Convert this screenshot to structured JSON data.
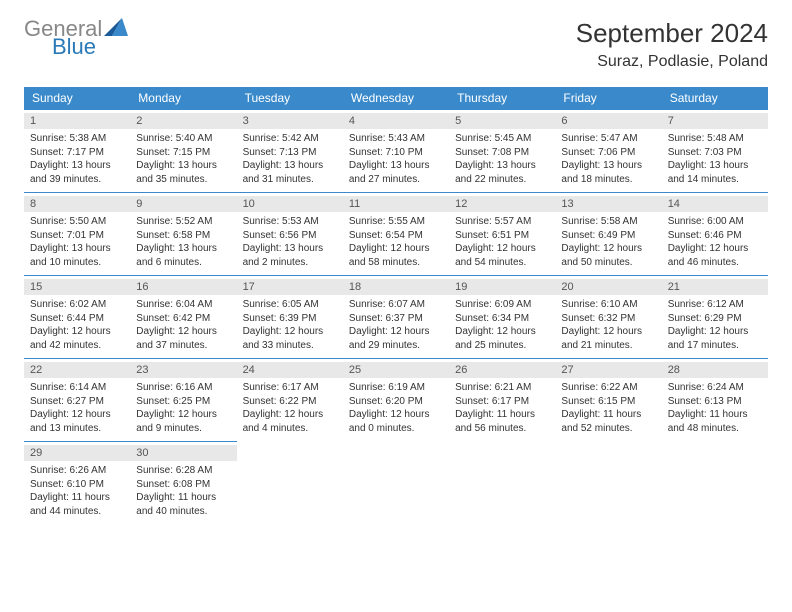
{
  "logo": {
    "word1": "General",
    "word2": "Blue",
    "word1_color": "#888888",
    "word2_color": "#2a7ab8",
    "spike_color": "#1b5a9a"
  },
  "title": "September 2024",
  "location": "Suraz, Podlasie, Poland",
  "colors": {
    "header_bg": "#3a8acb",
    "header_fg": "#ffffff",
    "day_label_bg": "#e8e8e8",
    "border": "#3a8acb",
    "text": "#333333"
  },
  "fonts": {
    "title_size": 26,
    "location_size": 16,
    "header_size": 12,
    "daynum_size": 11,
    "info_size": 10
  },
  "day_headers": [
    "Sunday",
    "Monday",
    "Tuesday",
    "Wednesday",
    "Thursday",
    "Friday",
    "Saturday"
  ],
  "weeks": [
    [
      {
        "n": "1",
        "sr": "5:38 AM",
        "ss": "7:17 PM",
        "dl": "13 hours and 39 minutes."
      },
      {
        "n": "2",
        "sr": "5:40 AM",
        "ss": "7:15 PM",
        "dl": "13 hours and 35 minutes."
      },
      {
        "n": "3",
        "sr": "5:42 AM",
        "ss": "7:13 PM",
        "dl": "13 hours and 31 minutes."
      },
      {
        "n": "4",
        "sr": "5:43 AM",
        "ss": "7:10 PM",
        "dl": "13 hours and 27 minutes."
      },
      {
        "n": "5",
        "sr": "5:45 AM",
        "ss": "7:08 PM",
        "dl": "13 hours and 22 minutes."
      },
      {
        "n": "6",
        "sr": "5:47 AM",
        "ss": "7:06 PM",
        "dl": "13 hours and 18 minutes."
      },
      {
        "n": "7",
        "sr": "5:48 AM",
        "ss": "7:03 PM",
        "dl": "13 hours and 14 minutes."
      }
    ],
    [
      {
        "n": "8",
        "sr": "5:50 AM",
        "ss": "7:01 PM",
        "dl": "13 hours and 10 minutes."
      },
      {
        "n": "9",
        "sr": "5:52 AM",
        "ss": "6:58 PM",
        "dl": "13 hours and 6 minutes."
      },
      {
        "n": "10",
        "sr": "5:53 AM",
        "ss": "6:56 PM",
        "dl": "13 hours and 2 minutes."
      },
      {
        "n": "11",
        "sr": "5:55 AM",
        "ss": "6:54 PM",
        "dl": "12 hours and 58 minutes."
      },
      {
        "n": "12",
        "sr": "5:57 AM",
        "ss": "6:51 PM",
        "dl": "12 hours and 54 minutes."
      },
      {
        "n": "13",
        "sr": "5:58 AM",
        "ss": "6:49 PM",
        "dl": "12 hours and 50 minutes."
      },
      {
        "n": "14",
        "sr": "6:00 AM",
        "ss": "6:46 PM",
        "dl": "12 hours and 46 minutes."
      }
    ],
    [
      {
        "n": "15",
        "sr": "6:02 AM",
        "ss": "6:44 PM",
        "dl": "12 hours and 42 minutes."
      },
      {
        "n": "16",
        "sr": "6:04 AM",
        "ss": "6:42 PM",
        "dl": "12 hours and 37 minutes."
      },
      {
        "n": "17",
        "sr": "6:05 AM",
        "ss": "6:39 PM",
        "dl": "12 hours and 33 minutes."
      },
      {
        "n": "18",
        "sr": "6:07 AM",
        "ss": "6:37 PM",
        "dl": "12 hours and 29 minutes."
      },
      {
        "n": "19",
        "sr": "6:09 AM",
        "ss": "6:34 PM",
        "dl": "12 hours and 25 minutes."
      },
      {
        "n": "20",
        "sr": "6:10 AM",
        "ss": "6:32 PM",
        "dl": "12 hours and 21 minutes."
      },
      {
        "n": "21",
        "sr": "6:12 AM",
        "ss": "6:29 PM",
        "dl": "12 hours and 17 minutes."
      }
    ],
    [
      {
        "n": "22",
        "sr": "6:14 AM",
        "ss": "6:27 PM",
        "dl": "12 hours and 13 minutes."
      },
      {
        "n": "23",
        "sr": "6:16 AM",
        "ss": "6:25 PM",
        "dl": "12 hours and 9 minutes."
      },
      {
        "n": "24",
        "sr": "6:17 AM",
        "ss": "6:22 PM",
        "dl": "12 hours and 4 minutes."
      },
      {
        "n": "25",
        "sr": "6:19 AM",
        "ss": "6:20 PM",
        "dl": "12 hours and 0 minutes."
      },
      {
        "n": "26",
        "sr": "6:21 AM",
        "ss": "6:17 PM",
        "dl": "11 hours and 56 minutes."
      },
      {
        "n": "27",
        "sr": "6:22 AM",
        "ss": "6:15 PM",
        "dl": "11 hours and 52 minutes."
      },
      {
        "n": "28",
        "sr": "6:24 AM",
        "ss": "6:13 PM",
        "dl": "11 hours and 48 minutes."
      }
    ],
    [
      {
        "n": "29",
        "sr": "6:26 AM",
        "ss": "6:10 PM",
        "dl": "11 hours and 44 minutes."
      },
      {
        "n": "30",
        "sr": "6:28 AM",
        "ss": "6:08 PM",
        "dl": "11 hours and 40 minutes."
      },
      null,
      null,
      null,
      null,
      null
    ]
  ]
}
